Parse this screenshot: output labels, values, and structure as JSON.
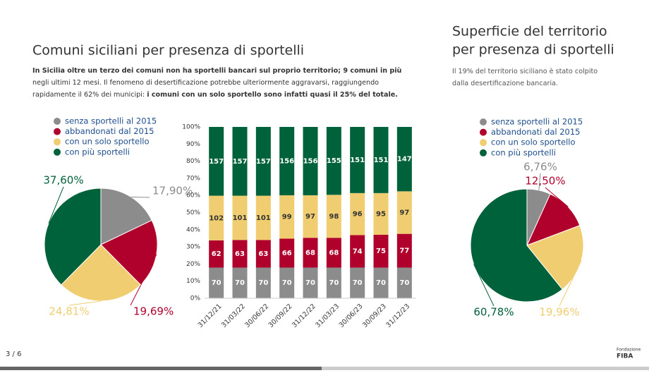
{
  "chart_data": [
    {
      "type": "pie",
      "title": "Comuni siciliani per presenza di sportelli",
      "subtitle": [
        {
          "text": "In Sicilia oltre un terzo dei comuni non ha sportelli bancari sul proprio territorio; 9 comuni in più",
          "bold": true
        },
        {
          "text": " negli ultimi 12 mesi. Il fenomeno di desertificazione potrebbe ulteriormente aggravarsi, raggiungendo rapidamente il 62% dei municipi: ",
          "bold": false
        },
        {
          "text": "i comuni con un solo sportello sono infatti quasi il 25% del totale.",
          "bold": true
        }
      ],
      "categories": [
        "senza sportelli al 2015",
        "abbandonati dal 2015",
        "con un solo sportello",
        "con più sportelli"
      ],
      "values": [
        17.9,
        19.69,
        24.81,
        37.6
      ],
      "value_labels": [
        "17,90%",
        "19,69%",
        "24,81%",
        "37,60%"
      ],
      "colors": [
        "#8c8c8c",
        "#b0002c",
        "#f0cd70",
        "#00623a"
      ]
    },
    {
      "type": "bar",
      "stacked": "percent",
      "categories": [
        "31/12/21",
        "31/03/22",
        "30/06/22",
        "30/09/22",
        "31/12/22",
        "31/03/23",
        "30/06/23",
        "30/09/23",
        "31/12/23"
      ],
      "series": [
        {
          "color": "#8c8c8c",
          "values": [
            70,
            70,
            70,
            70,
            70,
            70,
            70,
            70,
            70
          ]
        },
        {
          "color": "#b0002c",
          "values": [
            62,
            63,
            63,
            66,
            68,
            68,
            74,
            75,
            77
          ]
        },
        {
          "color": "#f0cd70",
          "values": [
            102,
            101,
            101,
            99,
            97,
            98,
            96,
            95,
            97
          ]
        },
        {
          "color": "#00623a",
          "values": [
            157,
            157,
            157,
            156,
            156,
            155,
            151,
            151,
            147
          ]
        }
      ],
      "ylim": [
        0,
        100
      ],
      "yticks": [
        {
          "value": 0,
          "label": "0%"
        },
        {
          "value": 10,
          "label": "10%"
        },
        {
          "value": 20,
          "label": "20%"
        },
        {
          "value": 30,
          "label": "30%"
        },
        {
          "value": 40,
          "label": "40%"
        },
        {
          "value": 50,
          "label": "50%"
        },
        {
          "value": 60,
          "label": "60%"
        },
        {
          "value": 70,
          "label": "70%"
        },
        {
          "value": 80,
          "label": "80%"
        },
        {
          "value": 90,
          "label": "90%"
        },
        {
          "value": 100,
          "label": "100%"
        }
      ]
    },
    {
      "type": "pie",
      "title_lines": [
        "Superficie del territorio",
        "per presenza di sportelli"
      ],
      "subtitle_text": "Il 19% del territorio siciliano è stato colpito dalla desertificazione bancaria.",
      "categories": [
        "senza sportelli al 2015",
        "abbandonati dal 2015",
        "con un solo sportello",
        "con più sportelli"
      ],
      "values": [
        6.76,
        12.5,
        19.96,
        60.78
      ],
      "value_labels": [
        "6,76%",
        "12,50%",
        "19,96%",
        "60,78%"
      ],
      "colors": [
        "#8c8c8c",
        "#b0002c",
        "#f0cd70",
        "#00623a"
      ]
    }
  ],
  "footer": {
    "page": "3 / 6",
    "logo_small": "Fondazione",
    "logo": "FIBA"
  }
}
